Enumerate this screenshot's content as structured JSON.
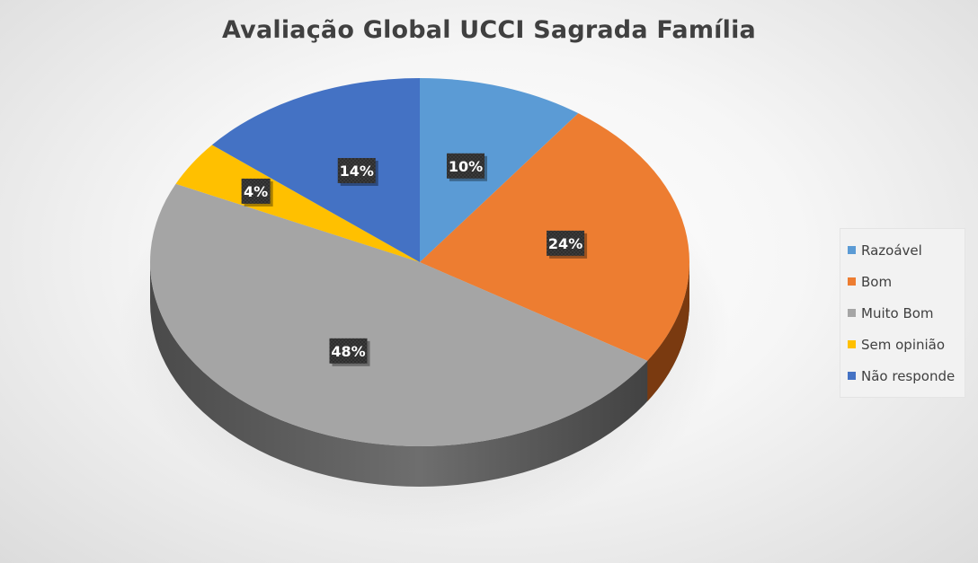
{
  "chart_data": {
    "type": "pie",
    "title": "Avaliação Global UCCI Sagrada Família",
    "categories": [
      "Razoável",
      "Bom",
      "Muito Bom",
      "Sem opinião",
      "Não responde"
    ],
    "values": [
      10,
      24,
      48,
      4,
      14
    ],
    "data_labels": [
      "10%",
      "24%",
      "48%",
      "4%",
      "14%"
    ],
    "colors": [
      "#5B9BD5",
      "#ED7D31",
      "#A5A5A5",
      "#FFC000",
      "#4472C4"
    ],
    "unit": "%",
    "style": "3d",
    "legend_position": "right"
  }
}
